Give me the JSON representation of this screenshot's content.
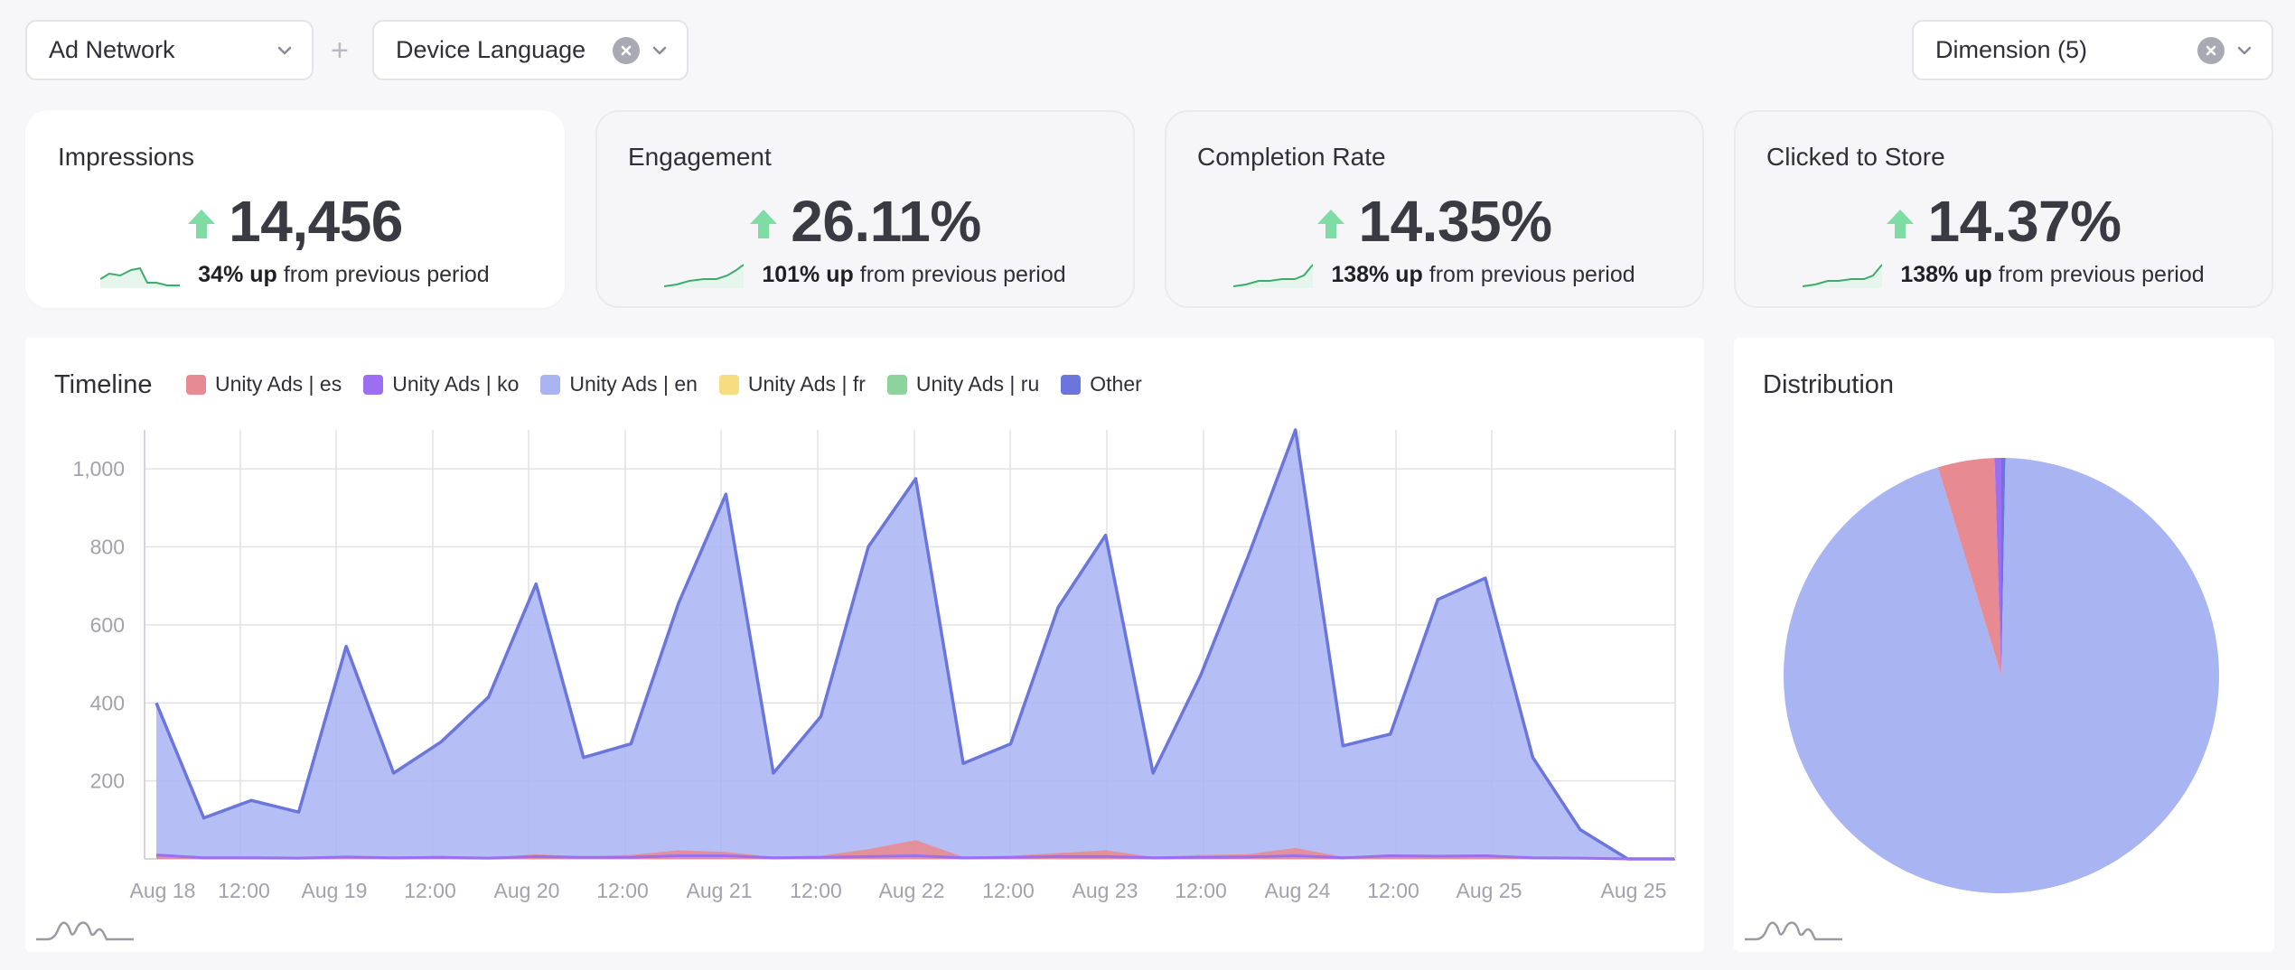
{
  "filters": {
    "ad_network": {
      "label": "Ad Network"
    },
    "device_language": {
      "label": "Device Language"
    },
    "dimension": {
      "label": "Dimension (5)"
    },
    "add_symbol": "+"
  },
  "kpis": [
    {
      "title": "Impressions",
      "value": "14,456",
      "change": "34% up",
      "suffix": "from previous period",
      "active": true
    },
    {
      "title": "Engagement",
      "value": "26.11%",
      "change": "101% up",
      "suffix": "from previous period",
      "active": false
    },
    {
      "title": "Completion Rate",
      "value": "14.35%",
      "change": "138% up",
      "suffix": "from previous period",
      "active": false
    },
    {
      "title": "Clicked to Store",
      "value": "14.37%",
      "change": "138% up",
      "suffix": "from previous period",
      "active": false
    }
  ],
  "timeline": {
    "title": "Timeline",
    "legend": [
      {
        "name": "Unity Ads | es",
        "color": "#e88a92"
      },
      {
        "name": "Unity Ads | ko",
        "color": "#9b6ff0"
      },
      {
        "name": "Unity Ads | en",
        "color": "#a9b4f3"
      },
      {
        "name": "Unity Ads | fr",
        "color": "#f7dc82"
      },
      {
        "name": "Unity Ads | ru",
        "color": "#8dd39e"
      },
      {
        "name": "Other",
        "color": "#6b76dc"
      }
    ]
  },
  "distribution": {
    "title": "Distribution"
  },
  "colors": {
    "accent_line": "#6b76dc",
    "area_fill": "#a9b4f3",
    "es_fill": "#e88a92",
    "ko_line": "#9b6ff0",
    "up_arrow": "#7fdca5",
    "sparkline": "#3dab6e"
  },
  "chart_data": [
    {
      "type": "area",
      "title": "Timeline",
      "x_tick_labels": [
        "Aug 18",
        "12:00",
        "Aug 19",
        "12:00",
        "Aug 20",
        "12:00",
        "Aug 21",
        "12:00",
        "Aug 22",
        "12:00",
        "Aug 23",
        "12:00",
        "Aug 24",
        "12:00",
        "Aug 25",
        "Aug 25"
      ],
      "y_tick_labels": [
        "200",
        "400",
        "600",
        "800",
        "1,000"
      ],
      "ylim": [
        0,
        1100
      ],
      "grid": true,
      "series": [
        {
          "name": "Unity Ads | en",
          "values": [
            400,
            105,
            150,
            120,
            545,
            220,
            300,
            415,
            705,
            260,
            295,
            655,
            935,
            220,
            365,
            800,
            975,
            245,
            295,
            645,
            830,
            220,
            470,
            775,
            1100,
            290,
            320,
            665,
            720,
            260,
            75,
            0,
            0
          ]
        },
        {
          "name": "Unity Ads | es",
          "values": [
            10,
            5,
            5,
            3,
            8,
            5,
            8,
            3,
            12,
            6,
            10,
            22,
            18,
            5,
            8,
            25,
            48,
            5,
            8,
            15,
            22,
            5,
            10,
            12,
            28,
            5,
            12,
            10,
            12,
            5,
            3,
            0,
            0
          ]
        },
        {
          "name": "Unity Ads | ko",
          "values": [
            10,
            3,
            3,
            2,
            5,
            3,
            4,
            2,
            6,
            4,
            4,
            8,
            8,
            3,
            4,
            6,
            8,
            3,
            4,
            6,
            6,
            3,
            4,
            5,
            8,
            3,
            8,
            7,
            8,
            3,
            2,
            0,
            0
          ]
        }
      ]
    },
    {
      "type": "pie",
      "title": "Distribution",
      "slices": [
        {
          "name": "Unity Ads | en",
          "value": 95.0
        },
        {
          "name": "Unity Ads | es",
          "value": 4.2
        },
        {
          "name": "Unity Ads | ko",
          "value": 0.5
        },
        {
          "name": "Other",
          "value": 0.3
        }
      ]
    }
  ]
}
